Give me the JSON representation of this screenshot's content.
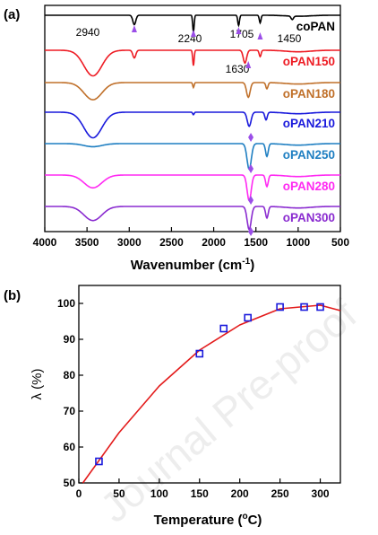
{
  "watermark": "Journal Pre-proof",
  "chart_data": [
    {
      "panel_label": "(a)",
      "type": "line",
      "xlabel": "Wavenumber (cm",
      "xlabel_sup": "-1",
      "xlabel_close": ")",
      "xlim": [
        4000,
        500
      ],
      "xticks": [
        4000,
        3500,
        3000,
        2500,
        2000,
        1500,
        1000,
        500
      ],
      "ylabel": "",
      "grid": false,
      "series": [
        {
          "name": "coPAN",
          "color": "#000000"
        },
        {
          "name": "oPAN150",
          "color": "#ee1c24"
        },
        {
          "name": "oPAN180",
          "color": "#c0702a"
        },
        {
          "name": "oPAN210",
          "color": "#1a1adc"
        },
        {
          "name": "oPAN250",
          "color": "#1f7fc2"
        },
        {
          "name": "oPAN280",
          "color": "#ff2af2"
        },
        {
          "name": "oPAN300",
          "color": "#8a2bd0"
        }
      ],
      "peak_annotations": [
        {
          "label": "2940",
          "x": 2940
        },
        {
          "label": "2240",
          "x": 2240
        },
        {
          "label": "1705",
          "x": 1705
        },
        {
          "label": "1450",
          "x": 1450
        },
        {
          "label": "1630",
          "x": 1590
        }
      ],
      "marker_color": "#9b4ee8"
    },
    {
      "panel_label": "(b)",
      "type": "scatter",
      "xlabel": "Temperature (",
      "xlabel_sup": "o",
      "xlabel_close": "C)",
      "ylabel": "λ (%)",
      "xlim": [
        0,
        325
      ],
      "ylim": [
        50,
        105
      ],
      "xticks": [
        0,
        50,
        100,
        150,
        200,
        250,
        300
      ],
      "yticks": [
        50,
        60,
        70,
        80,
        90,
        100
      ],
      "grid": false,
      "points": {
        "x": [
          25,
          150,
          180,
          210,
          250,
          280,
          300
        ],
        "y": [
          56,
          86,
          93,
          96,
          99,
          99,
          99
        ]
      },
      "fit": {
        "x": [
          5,
          50,
          100,
          150,
          200,
          250,
          300,
          325
        ],
        "y": [
          50,
          64,
          77,
          87,
          94,
          98.5,
          99.5,
          98
        ]
      },
      "marker_color": "#1a1adc",
      "fit_color": "#e31b1b"
    }
  ]
}
